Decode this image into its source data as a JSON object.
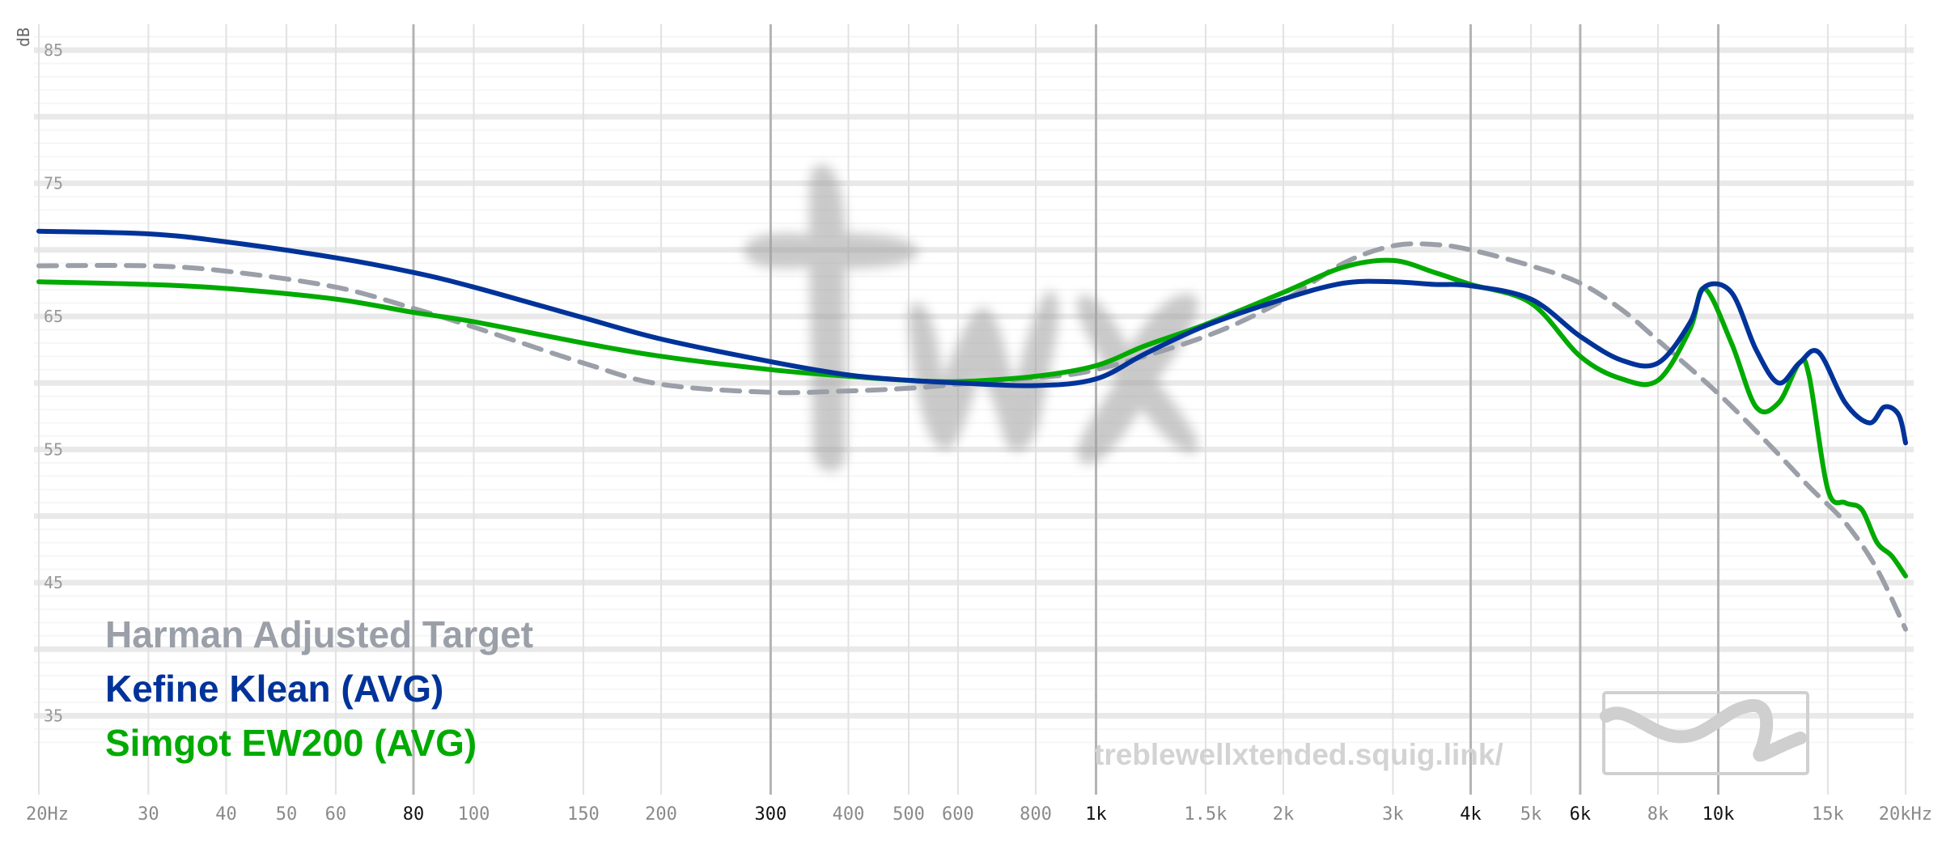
{
  "chart_data": {
    "type": "line",
    "x_scale": "log",
    "xlim": [
      20,
      20000
    ],
    "ylim": [
      30,
      87
    ],
    "ylabel": "dB",
    "y_ticks": [
      {
        "value": 85,
        "label": "85"
      },
      {
        "value": 75,
        "label": "75"
      },
      {
        "value": 65,
        "label": "65"
      },
      {
        "value": 55,
        "label": "55"
      },
      {
        "value": 45,
        "label": "45"
      },
      {
        "value": 35,
        "label": "35"
      }
    ],
    "x_ticks": [
      {
        "value": 20,
        "label": "20Hz",
        "major": false
      },
      {
        "value": 30,
        "label": "30",
        "major": false
      },
      {
        "value": 40,
        "label": "40",
        "major": false
      },
      {
        "value": 50,
        "label": "50",
        "major": false
      },
      {
        "value": 60,
        "label": "60",
        "major": false
      },
      {
        "value": 80,
        "label": "80",
        "major": true
      },
      {
        "value": 100,
        "label": "100",
        "major": false
      },
      {
        "value": 150,
        "label": "150",
        "major": false
      },
      {
        "value": 200,
        "label": "200",
        "major": false
      },
      {
        "value": 300,
        "label": "300",
        "major": true
      },
      {
        "value": 400,
        "label": "400",
        "major": false
      },
      {
        "value": 500,
        "label": "500",
        "major": false
      },
      {
        "value": 600,
        "label": "600",
        "major": false
      },
      {
        "value": 800,
        "label": "800",
        "major": false
      },
      {
        "value": 1000,
        "label": "1k",
        "major": true
      },
      {
        "value": 1500,
        "label": "1.5k",
        "major": false
      },
      {
        "value": 2000,
        "label": "2k",
        "major": false
      },
      {
        "value": 3000,
        "label": "3k",
        "major": false
      },
      {
        "value": 4000,
        "label": "4k",
        "major": true
      },
      {
        "value": 5000,
        "label": "5k",
        "major": false
      },
      {
        "value": 6000,
        "label": "6k",
        "major": true
      },
      {
        "value": 8000,
        "label": "8k",
        "major": false
      },
      {
        "value": 10000,
        "label": "10k",
        "major": true
      },
      {
        "value": 15000,
        "label": "15k",
        "major": false
      },
      {
        "value": 20000,
        "label": "20kHz",
        "major": false
      }
    ],
    "grid": true,
    "legend_placement": "bottom-left",
    "series": [
      {
        "name": "Harman Adjusted Target",
        "color": "#9a9fa8",
        "dashed": true,
        "points": [
          [
            20,
            68.8
          ],
          [
            30,
            68.8
          ],
          [
            40,
            68.4
          ],
          [
            60,
            67.2
          ],
          [
            80,
            65.6
          ],
          [
            100,
            64.2
          ],
          [
            150,
            61.5
          ],
          [
            200,
            59.9
          ],
          [
            300,
            59.3
          ],
          [
            400,
            59.4
          ],
          [
            500,
            59.6
          ],
          [
            600,
            59.9
          ],
          [
            800,
            60.4
          ],
          [
            1000,
            61.0
          ],
          [
            1500,
            63.5
          ],
          [
            2000,
            66.2
          ],
          [
            2500,
            69.0
          ],
          [
            3000,
            70.3
          ],
          [
            3500,
            70.4
          ],
          [
            4000,
            70.0
          ],
          [
            5000,
            68.8
          ],
          [
            6000,
            67.5
          ],
          [
            7000,
            65.5
          ],
          [
            8000,
            63.2
          ],
          [
            10000,
            59.2
          ],
          [
            12000,
            55.5
          ],
          [
            14000,
            52.2
          ],
          [
            16000,
            49.5
          ],
          [
            18000,
            46.0
          ],
          [
            20000,
            41.5
          ]
        ]
      },
      {
        "name": "Kefine Klean (AVG)",
        "color": "#003399",
        "dashed": false,
        "points": [
          [
            20,
            71.4
          ],
          [
            30,
            71.2
          ],
          [
            40,
            70.6
          ],
          [
            60,
            69.4
          ],
          [
            80,
            68.3
          ],
          [
            100,
            67.2
          ],
          [
            150,
            64.9
          ],
          [
            200,
            63.3
          ],
          [
            300,
            61.6
          ],
          [
            400,
            60.6
          ],
          [
            500,
            60.2
          ],
          [
            600,
            60.0
          ],
          [
            800,
            59.8
          ],
          [
            1000,
            60.3
          ],
          [
            1200,
            62.2
          ],
          [
            1500,
            64.3
          ],
          [
            2000,
            66.3
          ],
          [
            2500,
            67.5
          ],
          [
            3000,
            67.6
          ],
          [
            3500,
            67.4
          ],
          [
            4000,
            67.3
          ],
          [
            5000,
            66.3
          ],
          [
            6000,
            63.5
          ],
          [
            7000,
            61.7
          ],
          [
            8000,
            61.5
          ],
          [
            9000,
            64.5
          ],
          [
            9500,
            67.2
          ],
          [
            10500,
            66.8
          ],
          [
            11500,
            62.5
          ],
          [
            12500,
            60.0
          ],
          [
            13500,
            61.5
          ],
          [
            14500,
            62.3
          ],
          [
            16000,
            58.5
          ],
          [
            17500,
            57.0
          ],
          [
            18500,
            58.2
          ],
          [
            19500,
            57.6
          ],
          [
            20000,
            55.5
          ]
        ]
      },
      {
        "name": "Simgot EW200 (AVG)",
        "color": "#00aa00",
        "dashed": false,
        "points": [
          [
            20,
            67.6
          ],
          [
            30,
            67.4
          ],
          [
            40,
            67.1
          ],
          [
            60,
            66.3
          ],
          [
            80,
            65.3
          ],
          [
            100,
            64.6
          ],
          [
            150,
            63.0
          ],
          [
            200,
            62.0
          ],
          [
            300,
            61.0
          ],
          [
            400,
            60.5
          ],
          [
            500,
            60.2
          ],
          [
            600,
            60.1
          ],
          [
            800,
            60.5
          ],
          [
            1000,
            61.3
          ],
          [
            1200,
            62.8
          ],
          [
            1500,
            64.4
          ],
          [
            2000,
            66.8
          ],
          [
            2500,
            68.7
          ],
          [
            3000,
            69.2
          ],
          [
            3500,
            68.3
          ],
          [
            4000,
            67.4
          ],
          [
            5000,
            66.0
          ],
          [
            6000,
            62.0
          ],
          [
            7000,
            60.3
          ],
          [
            8000,
            60.2
          ],
          [
            9000,
            64.0
          ],
          [
            9500,
            67.1
          ],
          [
            10500,
            63.0
          ],
          [
            11500,
            58.2
          ],
          [
            12500,
            58.5
          ],
          [
            13500,
            61.5
          ],
          [
            14000,
            60.5
          ],
          [
            15000,
            52.0
          ],
          [
            16000,
            51.0
          ],
          [
            17000,
            50.5
          ],
          [
            18000,
            48.0
          ],
          [
            19000,
            47.0
          ],
          [
            20000,
            45.5
          ]
        ]
      }
    ]
  },
  "legend": {
    "items": [
      {
        "label": "Harman Adjusted Target",
        "color": "#9a9fa8"
      },
      {
        "label": "Kefine Klean (AVG)",
        "color": "#003399"
      },
      {
        "label": "Simgot EW200 (AVG)",
        "color": "#00aa00"
      }
    ]
  },
  "watermark": {
    "logo_text": "twx",
    "site_url": "treblewellxtended.squig.link/"
  }
}
